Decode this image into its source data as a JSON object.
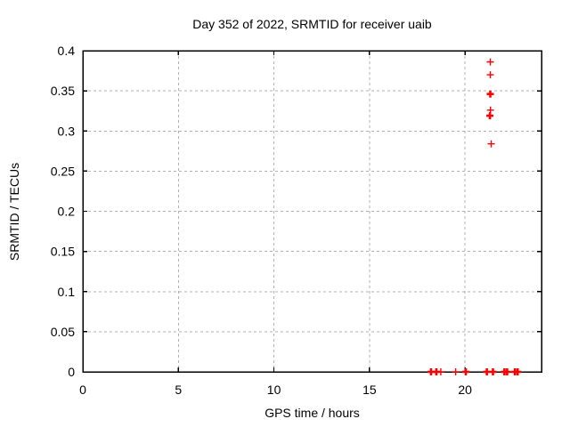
{
  "chart_data": {
    "type": "scatter",
    "title": "Day 352 of 2022, SRMTID for receiver uaib",
    "xlabel": "GPS time / hours",
    "ylabel": "SRMTID / TECUs",
    "xlim": [
      0,
      24
    ],
    "ylim": [
      0,
      0.4
    ],
    "grid": true,
    "legend": "none",
    "marker": "plus",
    "marker_color": "#ff0000",
    "grid_color": "#b0b0b0",
    "border_color": "#000000",
    "background_color": "#ffffff",
    "x_ticks": [
      {
        "v": 0,
        "label": "0",
        "grid": false
      },
      {
        "v": 5,
        "label": "5",
        "grid": true
      },
      {
        "v": 10,
        "label": "10",
        "grid": true
      },
      {
        "v": 15,
        "label": "15",
        "grid": true
      },
      {
        "v": 20,
        "label": "20",
        "grid": true
      }
    ],
    "y_ticks": [
      {
        "v": 0,
        "label": "0",
        "grid": false
      },
      {
        "v": 0.05,
        "label": "0.05",
        "grid": true
      },
      {
        "v": 0.1,
        "label": "0.1",
        "grid": true
      },
      {
        "v": 0.15,
        "label": "0.15",
        "grid": true
      },
      {
        "v": 0.2,
        "label": "0.2",
        "grid": true
      },
      {
        "v": 0.25,
        "label": "0.25",
        "grid": true
      },
      {
        "v": 0.3,
        "label": "0.3",
        "grid": true
      },
      {
        "v": 0.35,
        "label": "0.35",
        "grid": true
      },
      {
        "v": 0.4,
        "label": "0.4",
        "grid": false
      }
    ],
    "series": [
      {
        "name": "SRMTID",
        "points": [
          {
            "x": 18.22,
            "y": 0,
            "w": 2
          },
          {
            "x": 18.5,
            "y": 0,
            "w": 2
          },
          {
            "x": 18.73,
            "y": 0,
            "w": 1
          },
          {
            "x": 19.51,
            "y": 0,
            "w": 1
          },
          {
            "x": 20.04,
            "y": 0,
            "w": 2
          },
          {
            "x": 21.14,
            "y": 0,
            "w": 2
          },
          {
            "x": 21.46,
            "y": 0,
            "w": 2
          },
          {
            "x": 22.13,
            "y": 0,
            "w": 3
          },
          {
            "x": 22.68,
            "y": 0,
            "w": 3
          },
          {
            "x": 21.32,
            "y": 0.386,
            "w": 1
          },
          {
            "x": 21.32,
            "y": 0.37,
            "w": 1
          },
          {
            "x": 21.32,
            "y": 0.346,
            "w": 2
          },
          {
            "x": 21.33,
            "y": 0.326,
            "w": 1
          },
          {
            "x": 21.3,
            "y": 0.319,
            "w": 2
          },
          {
            "x": 21.37,
            "y": 0.284,
            "w": 1
          }
        ]
      }
    ]
  }
}
